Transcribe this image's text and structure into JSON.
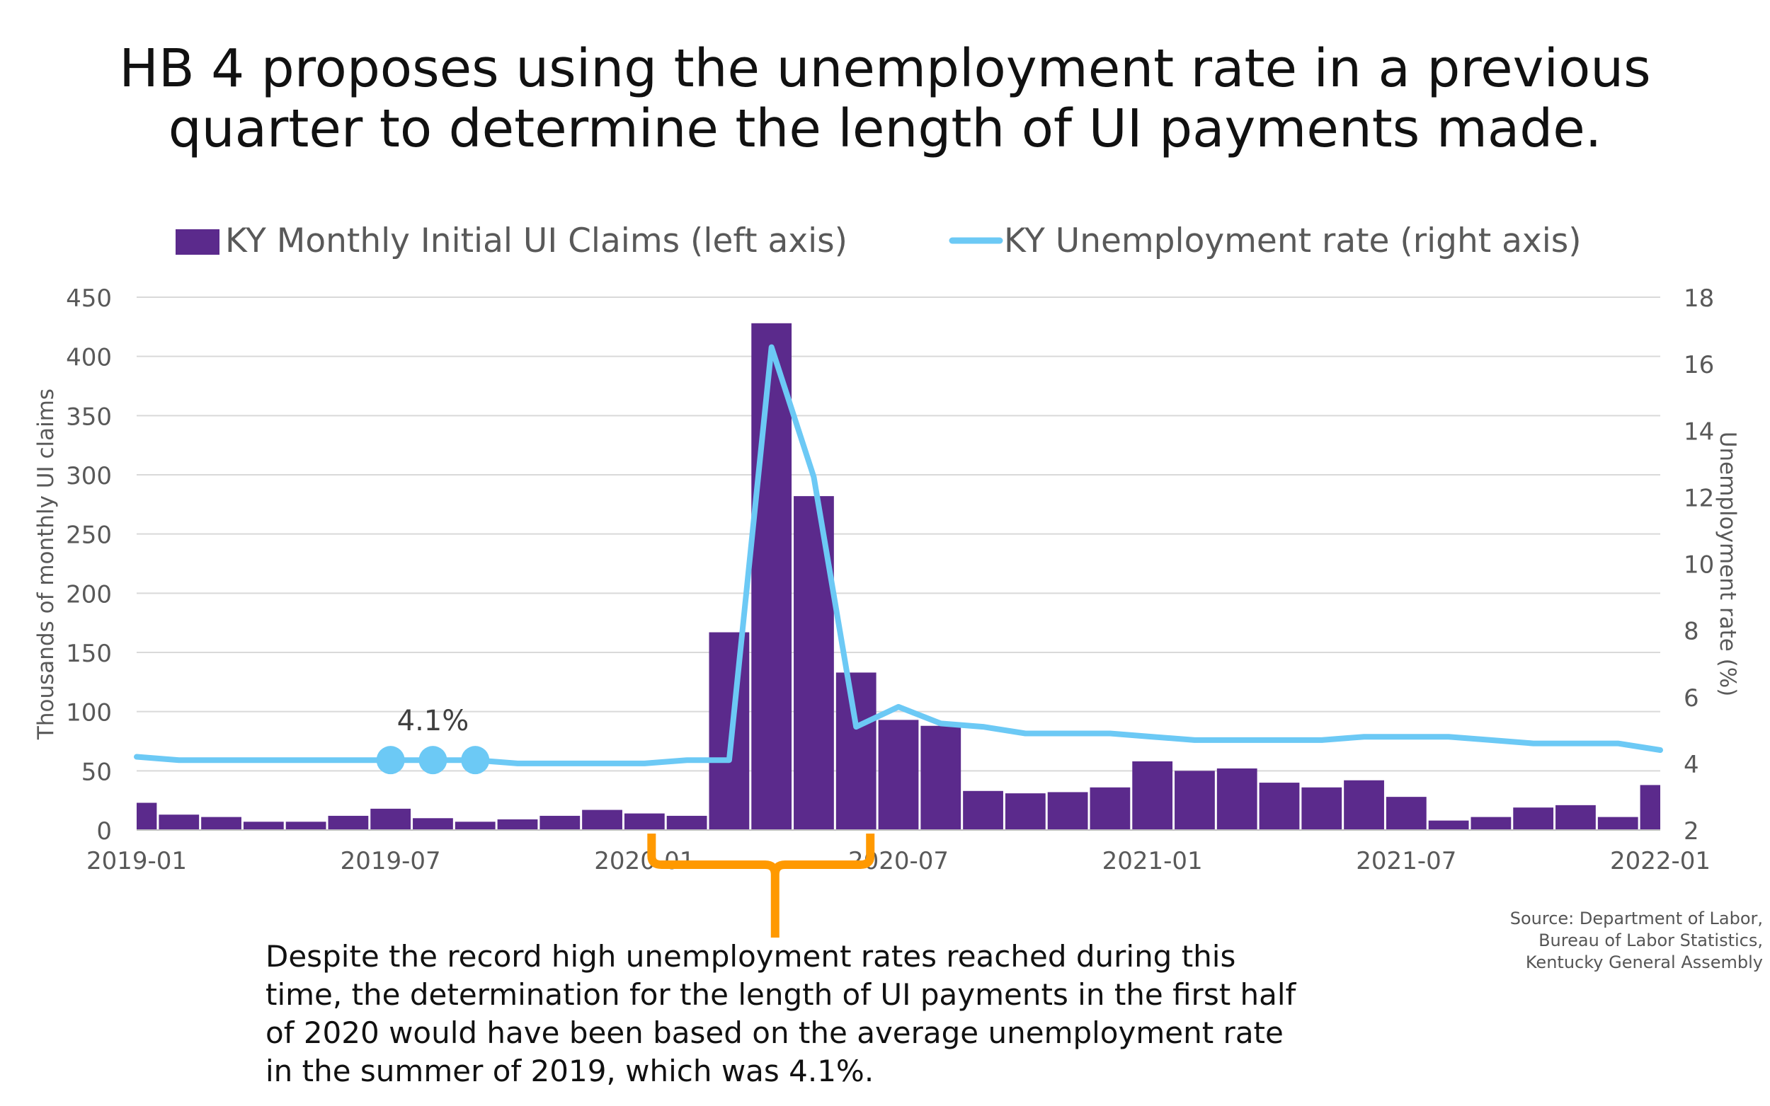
{
  "title_lines": [
    "HB 4 proposes using the unemployment rate in a previous",
    "quarter to determine the length of UI payments made."
  ],
  "annotation": "Despite the record high unemployment rates reached during this time, the determination for the length of UI payments in the first half of 2020 would have been based on the average unemployment rate in the summer of 2019, which was 4.1%.",
  "source_lines": [
    "Source: Department of Labor,",
    "Bureau of Labor Statistics,",
    "Kentucky General Assembly"
  ],
  "chart_data": {
    "type": "bar",
    "x": [
      "2019-01",
      "2019-02",
      "2019-03",
      "2019-04",
      "2019-05",
      "2019-06",
      "2019-07",
      "2019-08",
      "2019-09",
      "2019-10",
      "2019-11",
      "2019-12",
      "2020-01",
      "2020-02",
      "2020-03",
      "2020-04",
      "2020-05",
      "2020-06",
      "2020-07",
      "2020-08",
      "2020-09",
      "2020-10",
      "2020-11",
      "2020-12",
      "2021-01",
      "2021-02",
      "2021-03",
      "2021-04",
      "2021-05",
      "2021-06",
      "2021-07",
      "2021-08",
      "2021-09",
      "2021-10",
      "2021-11",
      "2021-12",
      "2022-01"
    ],
    "x_tick_labels": [
      "2019-01",
      "2019-07",
      "2020-01",
      "2020-07",
      "2021-01",
      "2021-07",
      "2022-01"
    ],
    "series": [
      {
        "name": "KY Monthly Initial UI Claims (left axis)",
        "type": "bar",
        "axis": "left",
        "color": "#5b2a8c",
        "values": [
          23,
          13,
          11,
          7,
          7,
          12,
          18,
          10,
          7,
          9,
          12,
          17,
          14,
          12,
          167,
          428,
          282,
          133,
          93,
          88,
          33,
          31,
          32,
          36,
          58,
          50,
          52,
          40,
          36,
          42,
          28,
          8,
          11,
          19,
          21,
          11,
          38
        ]
      },
      {
        "name": "KY Unemployment rate (right axis)",
        "type": "line",
        "axis": "right",
        "color": "#6cc9f5",
        "values": [
          4.2,
          4.1,
          4.1,
          4.1,
          4.1,
          4.1,
          4.1,
          4.1,
          4.1,
          4.0,
          4.0,
          4.0,
          4.0,
          4.1,
          4.1,
          16.5,
          12.6,
          5.1,
          5.7,
          5.2,
          5.1,
          4.9,
          4.9,
          4.9,
          4.8,
          4.7,
          4.7,
          4.7,
          4.7,
          4.8,
          4.8,
          4.8,
          4.7,
          4.6,
          4.6,
          4.6,
          4.4
        ]
      }
    ],
    "highlight": {
      "months": [
        "2019-07",
        "2019-08",
        "2019-09"
      ],
      "label": "4.1%",
      "color": "#6cc9f5"
    },
    "bracket": {
      "from": "2020-01",
      "to": "2020-06",
      "color": "#ff9900"
    },
    "ylabel_left": "Thousands of monthly UI claims",
    "ylabel_right": "Unemployment rate (%)",
    "ylim_left": [
      0,
      450
    ],
    "yticks_left": [
      0,
      50,
      100,
      150,
      200,
      250,
      300,
      350,
      400,
      450
    ],
    "ylim_right": [
      2,
      18
    ],
    "yticks_right": [
      2,
      4,
      6,
      8,
      10,
      12,
      14,
      16,
      18
    ],
    "grid": true,
    "legend_position": "top-center"
  }
}
